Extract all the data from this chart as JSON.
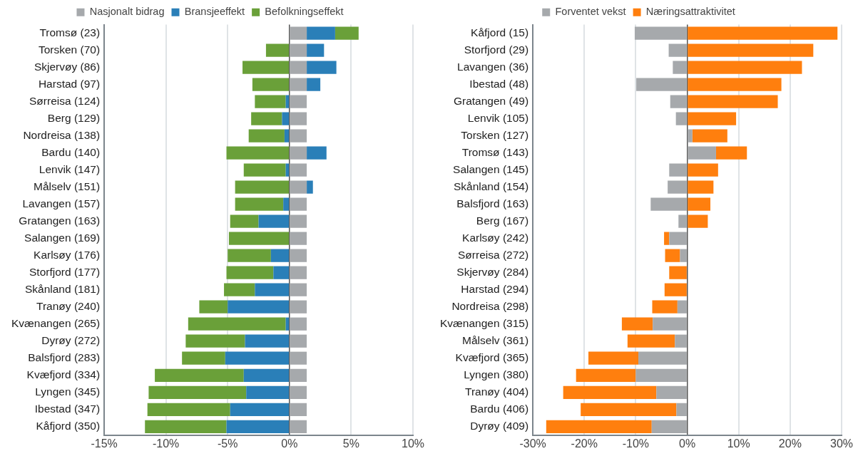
{
  "chart_data": [
    {
      "type": "bar",
      "orientation": "horizontal",
      "stacked": true,
      "grid": "x",
      "legend": "top",
      "categories": [
        "Tromsø (23)",
        "Torsken (70)",
        "Skjervøy (86)",
        "Harstad (97)",
        "Sørreisa (124)",
        "Berg (129)",
        "Nordreisa (138)",
        "Bardu (140)",
        "Lenvik (147)",
        "Målselv (151)",
        "Lavangen (157)",
        "Gratangen (163)",
        "Salangen (169)",
        "Karlsøy (176)",
        "Storfjord (177)",
        "Skånland (181)",
        "Tranøy (240)",
        "Kvænangen (265)",
        "Dyrøy (272)",
        "Balsfjord (283)",
        "Kvæfjord (334)",
        "Lyngen (345)",
        "Ibestad (347)",
        "Kåfjord (350)"
      ],
      "series": [
        {
          "name": "Nasjonalt bidrag",
          "color": "#a6a9ac",
          "values": [
            1.4,
            1.4,
            1.4,
            1.4,
            1.4,
            1.4,
            1.4,
            1.4,
            1.4,
            1.4,
            1.4,
            1.4,
            1.4,
            1.4,
            1.4,
            1.4,
            1.4,
            1.4,
            1.4,
            1.4,
            1.4,
            1.4,
            1.4,
            1.4
          ]
        },
        {
          "name": "Bransjeeffekt",
          "color": "#2a7fb8",
          "values": [
            2.3,
            1.4,
            2.4,
            1.1,
            -0.3,
            -0.6,
            -0.4,
            1.6,
            -0.3,
            0.5,
            -0.5,
            -2.5,
            0,
            -1.5,
            -1.3,
            -2.8,
            -5.0,
            -0.3,
            -3.6,
            -5.2,
            -3.7,
            -3.5,
            -4.8,
            -5.1
          ]
        },
        {
          "name": "Befolkningseffekt",
          "color": "#6aa039",
          "values": [
            1.9,
            -1.9,
            -3.8,
            -3.0,
            -2.5,
            -2.5,
            -2.9,
            -5.1,
            -3.4,
            -4.4,
            -3.9,
            -2.3,
            -4.9,
            -3.5,
            -3.8,
            -2.5,
            -2.3,
            -7.9,
            -4.8,
            -3.5,
            -7.2,
            -7.9,
            -6.7,
            -6.6
          ]
        }
      ],
      "xlim": [
        -15,
        10
      ],
      "xticks": [
        {
          "value": -15,
          "label": "-15%"
        },
        {
          "value": -10,
          "label": "-10%"
        },
        {
          "value": -5,
          "label": "-5%"
        },
        {
          "value": 0,
          "label": "0%"
        },
        {
          "value": 5,
          "label": "5%"
        },
        {
          "value": 10,
          "label": "10%"
        }
      ]
    },
    {
      "type": "bar",
      "orientation": "horizontal",
      "stacked": true,
      "grid": "x",
      "legend": "top",
      "categories": [
        "Kåfjord (15)",
        "Storfjord (29)",
        "Lavangen (36)",
        "Ibestad (48)",
        "Gratangen (49)",
        "Lenvik (105)",
        "Torsken (127)",
        "Tromsø (143)",
        "Salangen (145)",
        "Skånland (154)",
        "Balsfjord (163)",
        "Berg (167)",
        "Karlsøy (242)",
        "Sørreisa (272)",
        "Skjervøy (284)",
        "Harstad (294)",
        "Nordreisa (298)",
        "Kvænangen (315)",
        "Målselv (361)",
        "Kvæfjord (365)",
        "Lyngen (380)",
        "Tranøy (404)",
        "Bardu (406)",
        "Dyrøy (409)"
      ],
      "series": [
        {
          "name": "Forventet vekst",
          "color": "#a6a9ac",
          "values": [
            -10.2,
            -3.6,
            -2.8,
            -9.9,
            -3.3,
            -2.2,
            1.0,
            5.6,
            -3.5,
            -3.8,
            -7.1,
            -1.7,
            -3.5,
            -1.4,
            0,
            null,
            -1.9,
            -6.7,
            -2.4,
            -9.5,
            -10.0,
            -6.0,
            -2.1,
            -6.9
          ]
        },
        {
          "name": "Næringsattraktivitet",
          "color": "#ff7f0e",
          "values": [
            29.2,
            24.5,
            22.3,
            18.3,
            17.6,
            9.5,
            6.8,
            6.0,
            6.0,
            5.1,
            4.5,
            4.0,
            -1.0,
            -2.9,
            -3.5,
            -4.4,
            -4.9,
            -6.0,
            -9.2,
            -9.7,
            -11.6,
            -18.1,
            -18.6,
            -20.5
          ]
        }
      ],
      "xlim": [
        -30,
        30
      ],
      "xticks": [
        {
          "value": -30,
          "label": "-30%"
        },
        {
          "value": -20,
          "label": "-20%"
        },
        {
          "value": -10,
          "label": "-10%"
        },
        {
          "value": 0,
          "label": "0%"
        },
        {
          "value": 10,
          "label": "10%"
        },
        {
          "value": 20,
          "label": "20%"
        },
        {
          "value": 30,
          "label": "30%"
        }
      ]
    }
  ]
}
